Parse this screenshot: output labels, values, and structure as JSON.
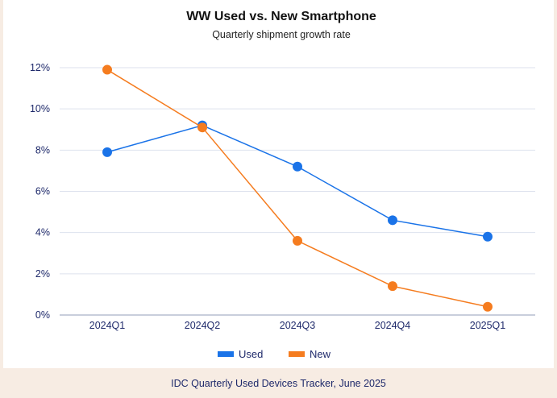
{
  "chart_data": {
    "type": "line",
    "title": "WW Used vs. New Smartphone",
    "subtitle": "Quarterly shipment growth rate",
    "categories": [
      "2024Q1",
      "2024Q2",
      "2024Q3",
      "2024Q4",
      "2025Q1"
    ],
    "series": [
      {
        "name": "Used",
        "color": "#1a73e8",
        "values": [
          7.9,
          9.2,
          7.2,
          4.6,
          3.8
        ]
      },
      {
        "name": "New",
        "color": "#f57c1f",
        "values": [
          11.9,
          9.1,
          3.6,
          1.4,
          0.4
        ]
      }
    ],
    "y_ticks": [
      "0%",
      "2%",
      "4%",
      "6%",
      "8%",
      "10%",
      "12%"
    ],
    "y_tick_values": [
      0,
      2,
      4,
      6,
      8,
      10,
      12
    ],
    "ylim": [
      0,
      12
    ],
    "grid": true,
    "legend_position": "bottom-center"
  },
  "footer": {
    "source": "IDC Quarterly Used Devices Tracker, June 2025"
  }
}
